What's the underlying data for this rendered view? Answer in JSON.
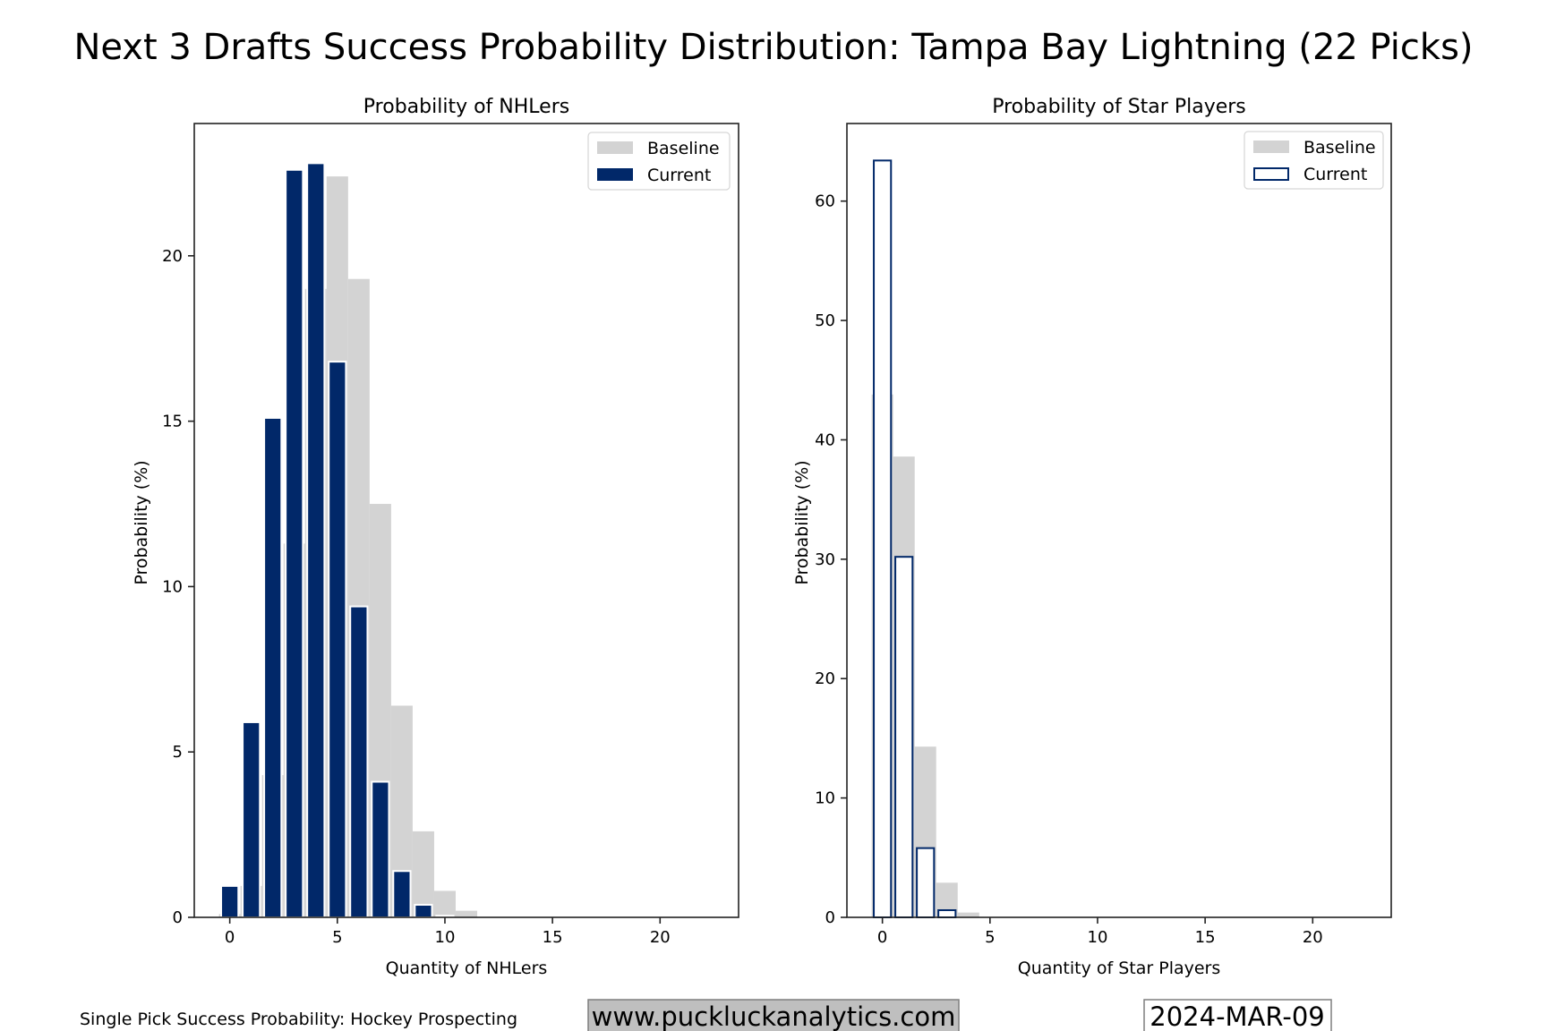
{
  "figure": {
    "suptitle": "Next 3 Drafts Success Probability Distribution: Tampa Bay Lightning (22 Picks)",
    "footer_source": "Single Pick Success Probability: Hockey Prospecting",
    "footer_url": "www.puckluckanalytics.com",
    "footer_date": "2024-MAR-09"
  },
  "colors": {
    "current": "#012869",
    "baseline": "#d3d3d3",
    "url_box": "#bfbfbf"
  },
  "chart_data": [
    {
      "type": "bar",
      "title": "Probability of NHLers",
      "xlabel": "Quantity of NHLers",
      "ylabel": "Probability (%)",
      "xlim": [
        -1.65,
        23.65
      ],
      "ylim": [
        0,
        24
      ],
      "xticks": [
        0,
        5,
        10,
        15,
        20
      ],
      "yticks": [
        0,
        5,
        10,
        15,
        20
      ],
      "legend": {
        "placement": "top-right",
        "entries": [
          "Baseline",
          "Current"
        ]
      },
      "current_style": "filled",
      "x": [
        0,
        1,
        2,
        3,
        4,
        5,
        6,
        7,
        8,
        9,
        10,
        11,
        12,
        13,
        14,
        15,
        16,
        17,
        18,
        19,
        20,
        21,
        22
      ],
      "series": [
        {
          "name": "Baseline",
          "values": [
            0.1,
            0.95,
            4.3,
            11.3,
            19.0,
            22.4,
            19.3,
            12.5,
            6.4,
            2.6,
            0.8,
            0.2,
            0,
            0,
            0,
            0,
            0,
            0,
            0,
            0,
            0,
            0,
            0
          ]
        },
        {
          "name": "Current",
          "values": [
            0.95,
            5.9,
            15.1,
            22.6,
            22.8,
            16.8,
            9.4,
            4.1,
            1.4,
            0.38,
            0.05,
            0,
            0,
            0,
            0,
            0,
            0,
            0,
            0,
            0,
            0,
            0,
            0
          ]
        }
      ]
    },
    {
      "type": "bar",
      "title": "Probability of Star Players",
      "xlabel": "Quantity of Star Players",
      "ylabel": "Probability (%)",
      "xlim": [
        -1.65,
        23.65
      ],
      "ylim": [
        0,
        66.5
      ],
      "xticks": [
        0,
        5,
        10,
        15,
        20
      ],
      "yticks": [
        0,
        10,
        20,
        30,
        40,
        50,
        60
      ],
      "legend": {
        "placement": "top-right",
        "entries": [
          "Baseline",
          "Current"
        ]
      },
      "current_style": "outline",
      "x": [
        0,
        1,
        2,
        3,
        4,
        5,
        6,
        7,
        8,
        9,
        10,
        11,
        12,
        13,
        14,
        15,
        16,
        17,
        18,
        19,
        20,
        21,
        22
      ],
      "series": [
        {
          "name": "Baseline",
          "values": [
            43.8,
            38.6,
            14.3,
            2.9,
            0.4,
            0.03,
            0,
            0,
            0,
            0,
            0,
            0,
            0,
            0,
            0,
            0,
            0,
            0,
            0,
            0,
            0,
            0,
            0
          ]
        },
        {
          "name": "Current",
          "values": [
            63.4,
            30.2,
            5.8,
            0.6,
            0,
            0,
            0,
            0,
            0,
            0,
            0,
            0,
            0,
            0,
            0,
            0,
            0,
            0,
            0,
            0,
            0,
            0,
            0
          ]
        }
      ]
    }
  ]
}
